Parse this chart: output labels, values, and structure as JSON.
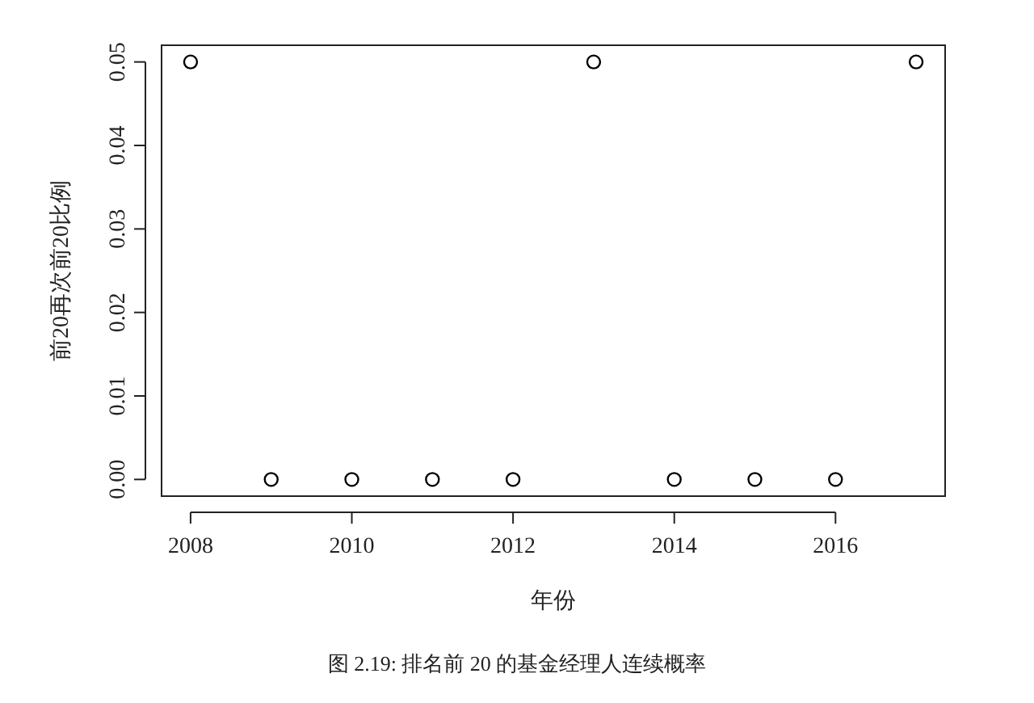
{
  "chart_data": {
    "type": "scatter",
    "xlabel": "年份",
    "ylabel": "前20再次前20比例",
    "annotations": [
      "图 2.19: 排名前 20 的基金经理人连续概率"
    ],
    "x": [
      2008,
      2009,
      2010,
      2011,
      2012,
      2013,
      2014,
      2015,
      2016,
      2017
    ],
    "values": [
      0.05,
      0,
      0,
      0,
      0,
      0.05,
      0,
      0,
      0,
      0.05
    ],
    "color": "#000000",
    "marker": "circle",
    "grid": false,
    "xlim": [
      2007.64,
      2017.36
    ],
    "ylim": [
      -0.002,
      0.052
    ],
    "xticks": [
      2008,
      2010,
      2012,
      2014,
      2016
    ],
    "yticks": [
      {
        "value": 0,
        "label": "0.00"
      },
      {
        "value": 0.01,
        "label": "0.01"
      },
      {
        "value": 0.02,
        "label": "0.02"
      },
      {
        "value": 0.03,
        "label": "0.03"
      },
      {
        "value": 0.04,
        "label": "0.04"
      },
      {
        "value": 0.05,
        "label": "0.05"
      }
    ]
  }
}
